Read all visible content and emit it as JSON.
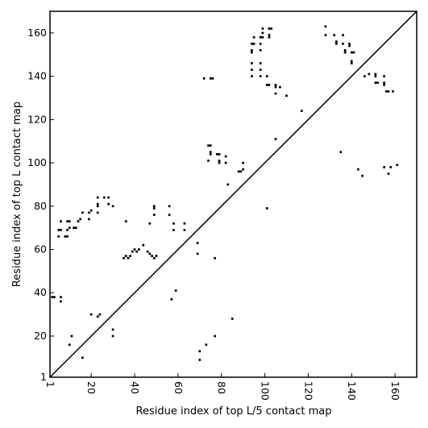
{
  "chart_data": {
    "type": "scatter",
    "xlabel": "Residue index of top L/5 contact map",
    "ylabel": "Residue index of top L contact map",
    "xlim": [
      1,
      170
    ],
    "ylim": [
      1,
      170
    ],
    "x_ticks": [
      1,
      20,
      40,
      60,
      80,
      100,
      120,
      140,
      160
    ],
    "y_ticks": [
      1,
      20,
      40,
      60,
      80,
      100,
      120,
      140,
      160
    ],
    "diagonal": true,
    "grid": false,
    "series": [
      {
        "points": [
          [
            70,
            9
          ],
          [
            70,
            13
          ],
          [
            73,
            16
          ],
          [
            77,
            20
          ],
          [
            85,
            28
          ],
          [
            30,
            20
          ],
          [
            30,
            23
          ],
          [
            20,
            30
          ],
          [
            23,
            29
          ],
          [
            24,
            30
          ],
          [
            16,
            10
          ],
          [
            10,
            16
          ],
          [
            11,
            20
          ],
          [
            57,
            37
          ],
          [
            59,
            41
          ],
          [
            2,
            38
          ],
          [
            3,
            38
          ],
          [
            6,
            36
          ],
          [
            6,
            38
          ],
          [
            35,
            56
          ],
          [
            36,
            57
          ],
          [
            37,
            56
          ],
          [
            38,
            57
          ],
          [
            39,
            59
          ],
          [
            40,
            60
          ],
          [
            41,
            59
          ],
          [
            42,
            60
          ],
          [
            44,
            62
          ],
          [
            46,
            59
          ],
          [
            47,
            58
          ],
          [
            48,
            57
          ],
          [
            49,
            56
          ],
          [
            50,
            57
          ],
          [
            47,
            72
          ],
          [
            49,
            76
          ],
          [
            49,
            80
          ],
          [
            49,
            79
          ],
          [
            56,
            76
          ],
          [
            56,
            80
          ],
          [
            58,
            72
          ],
          [
            58,
            69
          ],
          [
            63,
            72
          ],
          [
            63,
            69
          ],
          [
            69,
            58
          ],
          [
            69,
            63
          ],
          [
            77,
            56
          ],
          [
            5,
            66
          ],
          [
            8,
            66
          ],
          [
            9,
            66
          ],
          [
            5,
            69
          ],
          [
            6,
            69
          ],
          [
            9,
            69
          ],
          [
            10,
            70
          ],
          [
            12,
            70
          ],
          [
            13,
            70
          ],
          [
            10,
            73
          ],
          [
            9,
            73
          ],
          [
            6,
            73
          ],
          [
            14,
            73
          ],
          [
            15,
            74
          ],
          [
            16,
            77
          ],
          [
            19,
            77
          ],
          [
            19,
            74
          ],
          [
            20,
            78
          ],
          [
            23,
            77
          ],
          [
            23,
            80
          ],
          [
            23,
            81
          ],
          [
            23,
            84
          ],
          [
            26,
            84
          ],
          [
            28,
            81
          ],
          [
            28,
            84
          ],
          [
            30,
            80
          ],
          [
            36,
            73
          ],
          [
            72,
            139
          ],
          [
            75,
            139
          ],
          [
            76,
            139
          ],
          [
            74,
            101
          ],
          [
            75,
            104
          ],
          [
            75,
            105
          ],
          [
            75,
            108
          ],
          [
            74,
            108
          ],
          [
            78,
            104
          ],
          [
            79,
            104
          ],
          [
            79,
            101
          ],
          [
            79,
            100
          ],
          [
            82,
            100
          ],
          [
            82,
            103
          ],
          [
            83,
            90
          ],
          [
            88,
            96
          ],
          [
            89,
            96
          ],
          [
            90,
            97
          ],
          [
            90,
            100
          ],
          [
            94,
            140
          ],
          [
            94,
            143
          ],
          [
            94,
            146
          ],
          [
            94,
            151
          ],
          [
            94,
            152
          ],
          [
            94,
            155
          ],
          [
            95,
            155
          ],
          [
            95,
            158
          ],
          [
            98,
            140
          ],
          [
            98,
            143
          ],
          [
            98,
            146
          ],
          [
            98,
            152
          ],
          [
            98,
            155
          ],
          [
            98,
            158
          ],
          [
            99,
            162
          ],
          [
            99,
            158
          ],
          [
            99,
            160
          ],
          [
            101,
            140
          ],
          [
            101,
            136
          ],
          [
            102,
            136
          ],
          [
            102,
            158
          ],
          [
            102,
            159
          ],
          [
            102,
            162
          ],
          [
            103,
            162
          ],
          [
            105,
            132
          ],
          [
            105,
            135
          ],
          [
            105,
            136
          ],
          [
            107,
            135
          ],
          [
            110,
            131
          ],
          [
            105,
            111
          ],
          [
            101,
            79
          ],
          [
            117,
            124
          ],
          [
            128,
            163
          ],
          [
            128,
            159
          ],
          [
            132,
            159
          ],
          [
            133,
            156
          ],
          [
            133,
            155
          ],
          [
            136,
            159
          ],
          [
            136,
            155
          ],
          [
            137,
            152
          ],
          [
            137,
            151
          ],
          [
            139,
            155
          ],
          [
            139,
            154
          ],
          [
            140,
            151
          ],
          [
            140,
            147
          ],
          [
            140,
            146
          ],
          [
            141,
            151
          ],
          [
            135,
            105
          ],
          [
            143,
            97
          ],
          [
            145,
            94
          ],
          [
            146,
            140
          ],
          [
            148,
            141
          ],
          [
            151,
            141
          ],
          [
            151,
            140
          ],
          [
            151,
            137
          ],
          [
            152,
            137
          ],
          [
            155,
            140
          ],
          [
            155,
            137
          ],
          [
            155,
            136
          ],
          [
            156,
            133
          ],
          [
            157,
            133
          ],
          [
            159,
            133
          ],
          [
            155,
            98
          ],
          [
            157,
            95
          ],
          [
            158,
            98
          ],
          [
            161,
            99
          ]
        ]
      }
    ]
  }
}
